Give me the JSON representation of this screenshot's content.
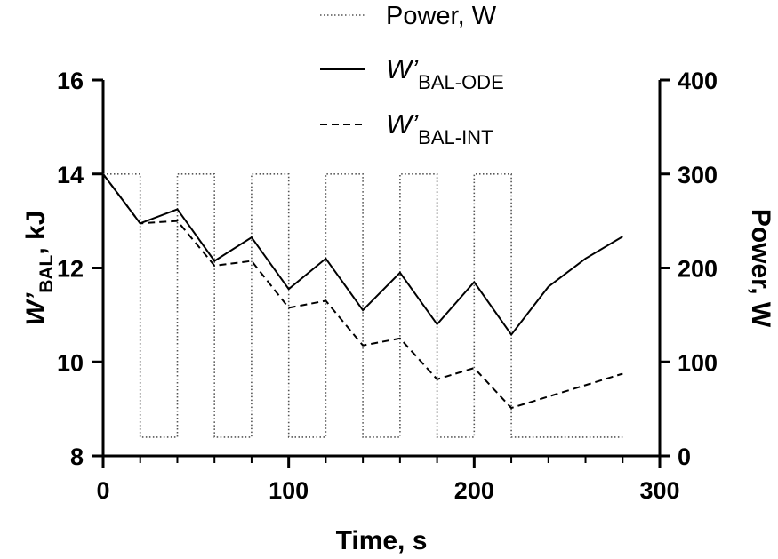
{
  "chart_data": {
    "type": "line",
    "xlabel": "Time, s",
    "ylabel_left": {
      "main": "W’",
      "sub": "BAL",
      "suffix": ", kJ"
    },
    "ylabel_right": "Power, W",
    "xlim": [
      0,
      300
    ],
    "ylim_left": [
      8,
      16
    ],
    "ylim_right": [
      0,
      400
    ],
    "x_ticks": [
      0,
      100,
      200,
      300
    ],
    "y_ticks_left": [
      8,
      10,
      12,
      14,
      16
    ],
    "y_ticks_right": [
      0,
      100,
      200,
      300,
      400
    ],
    "grid": false,
    "legend_position": "top-center",
    "legend": [
      {
        "key": "power",
        "main": "Power, W",
        "sub": "",
        "style": "dotted"
      },
      {
        "key": "ode",
        "main": "W’",
        "sub": "BAL-ODE",
        "style": "solid"
      },
      {
        "key": "int",
        "main": "W’",
        "sub": "BAL-INT",
        "style": "dashed"
      }
    ],
    "series": [
      {
        "key": "power",
        "axis": "right",
        "x": [
          0,
          20,
          20,
          40,
          40,
          60,
          60,
          80,
          80,
          100,
          100,
          120,
          120,
          140,
          140,
          160,
          160,
          180,
          180,
          200,
          200,
          220,
          220,
          280
        ],
        "y": [
          300,
          300,
          20,
          20,
          300,
          300,
          20,
          20,
          300,
          300,
          20,
          20,
          300,
          300,
          20,
          20,
          300,
          300,
          20,
          20,
          300,
          300,
          20,
          20
        ]
      },
      {
        "key": "ode",
        "axis": "left",
        "x": [
          0,
          20,
          40,
          60,
          80,
          100,
          120,
          140,
          160,
          180,
          200,
          220,
          240,
          260,
          280
        ],
        "y": [
          14.0,
          12.95,
          13.25,
          12.15,
          12.65,
          11.55,
          12.2,
          11.1,
          11.9,
          10.8,
          11.7,
          10.58,
          11.6,
          12.2,
          12.67
        ]
      },
      {
        "key": "int",
        "axis": "left",
        "x": [
          0,
          20,
          40,
          60,
          80,
          100,
          120,
          140,
          160,
          180,
          200,
          220,
          280
        ],
        "y": [
          14.0,
          12.95,
          13.0,
          12.05,
          12.15,
          11.15,
          11.3,
          10.35,
          10.5,
          9.63,
          9.87,
          9.02,
          9.75
        ]
      }
    ]
  }
}
